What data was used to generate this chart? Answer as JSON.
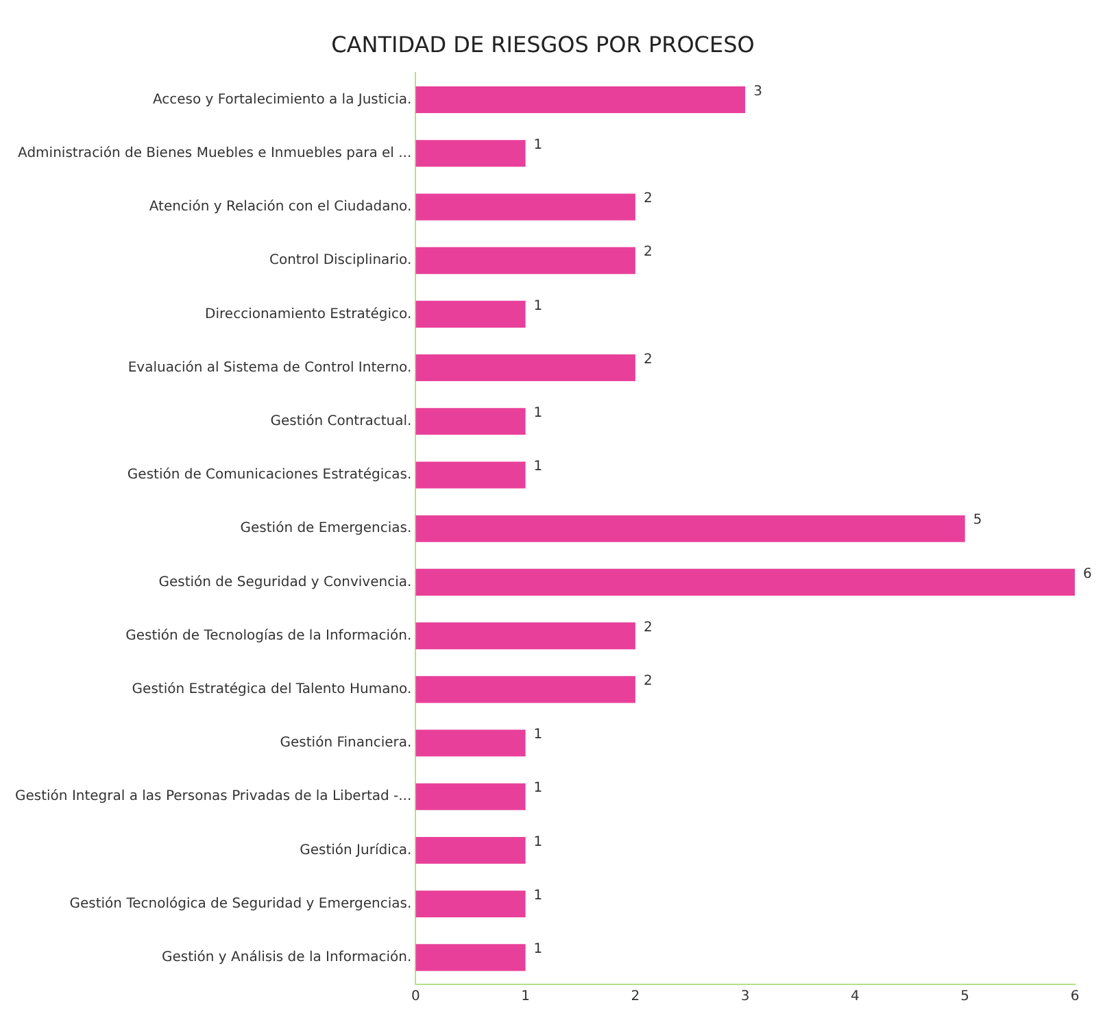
{
  "chart_data": {
    "type": "bar",
    "orientation": "horizontal",
    "title": "CANTIDAD DE RIESGOS POR PROCESO",
    "categories": [
      "Acceso y Fortalecimiento a la Justicia.",
      "Administración de Bienes Muebles e Inmuebles para el ...",
      "Atención y Relación con el Ciudadano.",
      "Control Disciplinario.",
      "Direccionamiento Estratégico.",
      "Evaluación al Sistema de Control Interno.",
      "Gestión Contractual.",
      "Gestión de Comunicaciones Estratégicas.",
      "Gestión de Emergencias.",
      "Gestión de Seguridad y Convivencia.",
      "Gestión de Tecnologías de la Información.",
      "Gestión Estratégica del Talento Humano.",
      "Gestión Financiera.",
      "Gestión Integral a las Personas Privadas de la Libertad -...",
      "Gestión Jurídica.",
      "Gestión Tecnológica de Seguridad y Emergencias.",
      "Gestión y Análisis de la Información."
    ],
    "values": [
      3,
      1,
      2,
      2,
      1,
      2,
      1,
      1,
      5,
      6,
      2,
      2,
      1,
      1,
      1,
      1,
      1
    ],
    "color": "#e8409a",
    "xlim": [
      0,
      6
    ],
    "xticks": [
      0,
      1,
      2,
      3,
      4,
      5,
      6
    ],
    "grid": false,
    "legend": false,
    "data_labels": true
  }
}
